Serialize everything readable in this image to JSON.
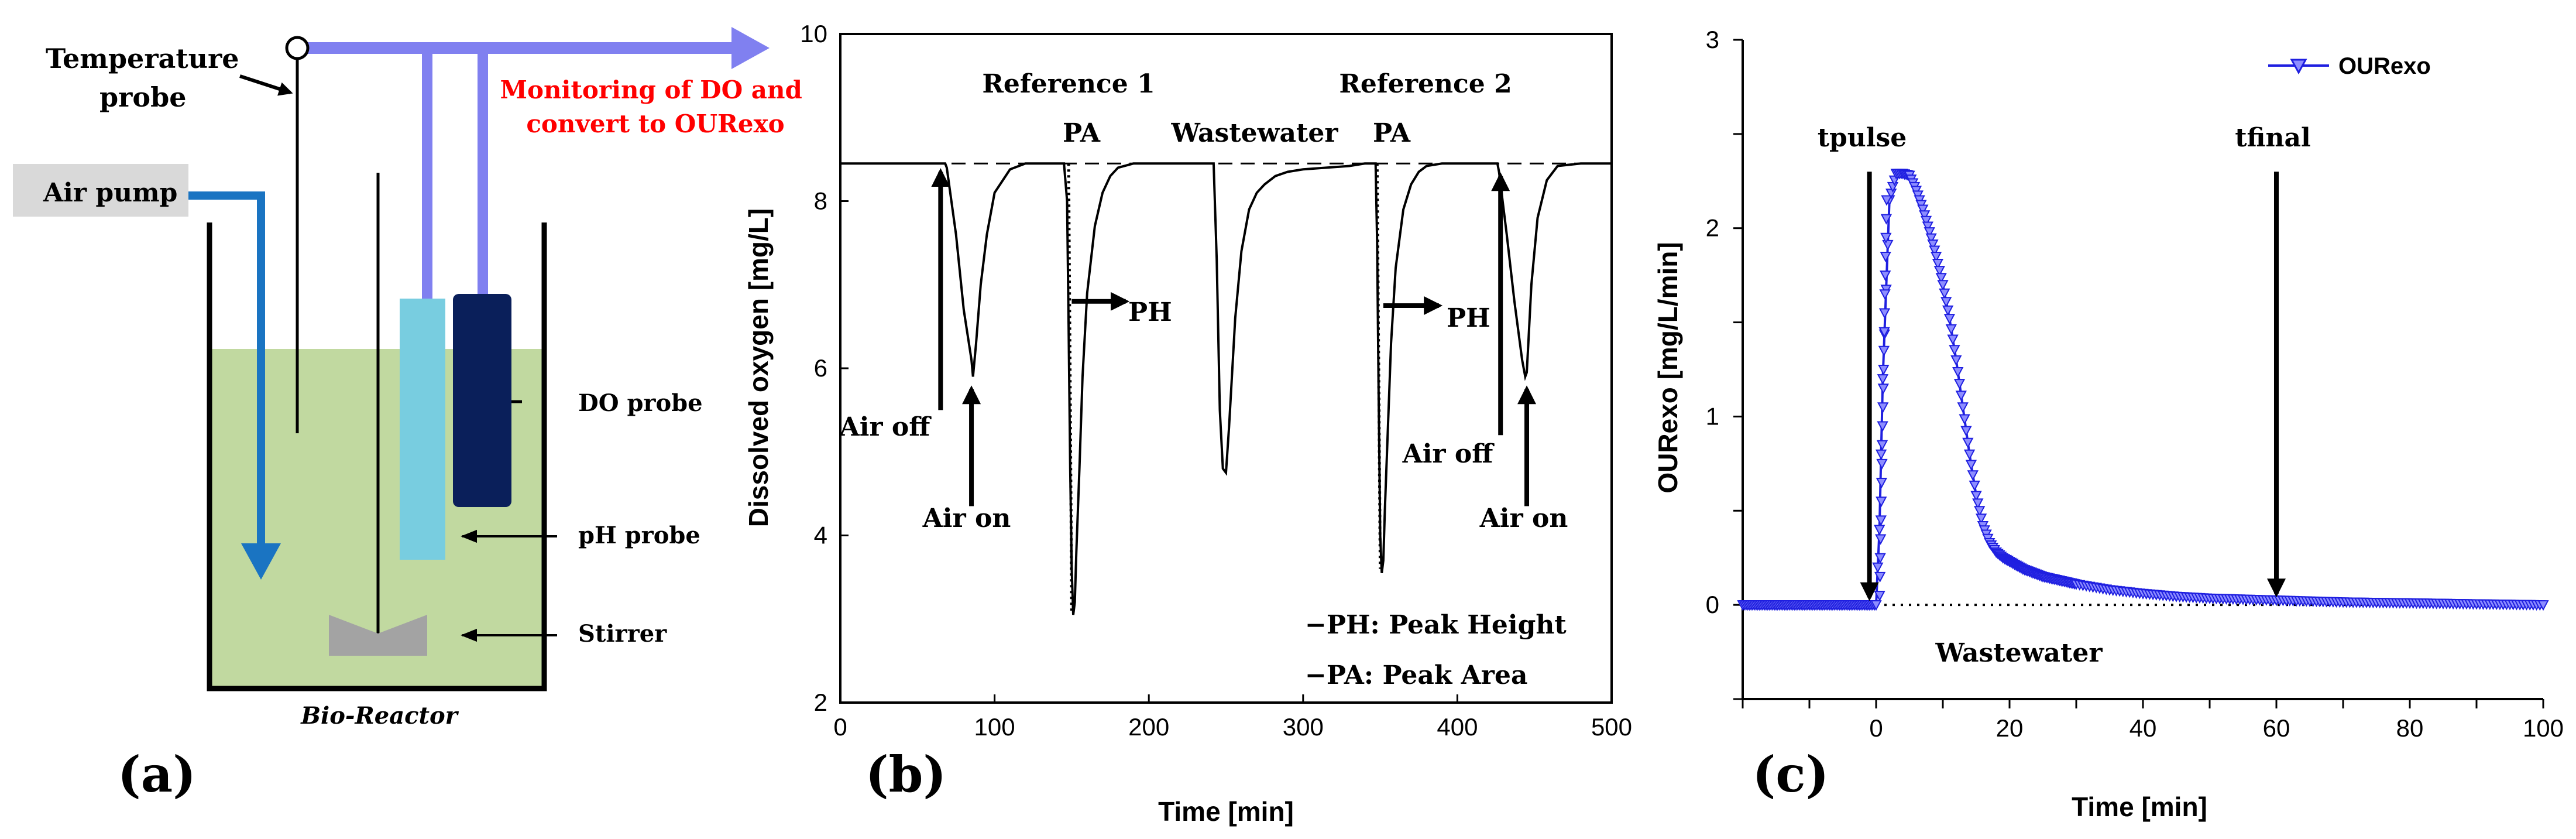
{
  "panel_a": {
    "label": "(a)",
    "temperature_probe": "Temperature\nprobe",
    "air_pump": "Air pump",
    "monitoring": "Monitoring of DO and\nconvert to OURexo",
    "do_probe": "DO probe",
    "ph_probe": "pH probe",
    "stirrer": "Stirrer",
    "reactor": "Bio-Reactor",
    "colors": {
      "liquid": "#c1d9a0",
      "blue_line": "#8080f0",
      "air_line": "#1a74c2",
      "ph_probe": "#78cde0",
      "do_probe": "#0a1f5a",
      "stirrer": "#a3a3a3",
      "monitor_text": "#ff0000",
      "air_box": "#d9d9d9"
    }
  },
  "panel_b": {
    "label": "(b)",
    "chart_data": {
      "type": "line",
      "xlabel": "Time [min]",
      "ylabel": "Dissolved oxygen [mg/L]",
      "xlim": [
        0,
        500
      ],
      "ylim": [
        2,
        10
      ],
      "xticks": [
        0,
        100,
        200,
        300,
        400,
        500
      ],
      "yticks": [
        2,
        4,
        6,
        8,
        10
      ],
      "baseline": 8.45,
      "series": [
        {
          "name": "DO",
          "x": [
            0,
            68,
            69,
            75,
            80,
            85,
            86,
            88,
            91,
            95,
            100,
            110,
            120,
            145,
            147,
            148,
            149,
            150,
            151,
            152,
            153,
            155,
            157,
            160,
            165,
            170,
            175,
            180,
            190,
            200,
            242,
            244,
            246,
            248,
            250,
            252,
            256,
            260,
            265,
            270,
            275,
            282,
            290,
            300,
            330,
            340,
            347,
            348,
            349,
            350,
            351,
            352,
            353,
            355,
            357,
            360,
            365,
            370,
            375,
            380,
            390,
            400,
            420,
            426,
            427,
            432,
            437,
            442,
            444,
            445,
            446,
            448,
            452,
            458,
            465,
            480,
            500
          ],
          "y": [
            8.45,
            8.45,
            8.4,
            7.6,
            6.7,
            6.1,
            5.9,
            6.3,
            7.0,
            7.6,
            8.1,
            8.38,
            8.45,
            8.45,
            8.0,
            6.5,
            4.8,
            3.6,
            3.05,
            3.2,
            3.8,
            4.8,
            5.9,
            6.9,
            7.7,
            8.1,
            8.3,
            8.4,
            8.45,
            8.45,
            8.45,
            7.3,
            5.5,
            4.8,
            4.75,
            5.3,
            6.6,
            7.4,
            7.9,
            8.1,
            8.2,
            8.3,
            8.35,
            8.38,
            8.42,
            8.45,
            8.45,
            7.5,
            5.6,
            4.0,
            3.55,
            3.7,
            4.3,
            5.3,
            6.3,
            7.2,
            7.9,
            8.2,
            8.35,
            8.42,
            8.45,
            8.45,
            8.45,
            8.45,
            8.35,
            7.6,
            6.8,
            6.1,
            5.9,
            5.95,
            6.3,
            7.0,
            7.8,
            8.25,
            8.42,
            8.45,
            8.45
          ]
        }
      ],
      "annotations": {
        "reference1": "Reference 1",
        "reference2": "Reference 2",
        "pa": "PA",
        "wastewater": "Wastewater",
        "ph": "PH",
        "air_off": "Air off",
        "air_on": "Air on",
        "legend_ph": "−PH: Peak Height",
        "legend_pa": "−PA: Peak Area"
      }
    }
  },
  "panel_c": {
    "label": "(c)",
    "chart_data": {
      "type": "line",
      "xlabel": "Time [min]",
      "ylabel": "OURexo [mg/L/min]",
      "xlim": [
        -20,
        100
      ],
      "ylim": [
        -0.5,
        3
      ],
      "xticks": [
        0,
        20,
        40,
        60,
        80,
        100
      ],
      "yticks": [
        0,
        1,
        2,
        3
      ],
      "series": [
        {
          "name": "OURexo",
          "x": [
            -20,
            0,
            0.5,
            1,
            2,
            3,
            4,
            5,
            6,
            7,
            8,
            9,
            10,
            11,
            12,
            13,
            14,
            15,
            16,
            17,
            18,
            19,
            20,
            22,
            25,
            30,
            35,
            40,
            45,
            50,
            55,
            60,
            70,
            80,
            90,
            100
          ],
          "y": [
            0,
            0,
            0.4,
            1.2,
            2.15,
            2.29,
            2.29,
            2.28,
            2.2,
            2.1,
            1.98,
            1.85,
            1.7,
            1.52,
            1.3,
            1.05,
            0.8,
            0.58,
            0.42,
            0.33,
            0.28,
            0.25,
            0.23,
            0.19,
            0.15,
            0.11,
            0.08,
            0.06,
            0.045,
            0.035,
            0.03,
            0.025,
            0.015,
            0.01,
            0.005,
            0.0
          ]
        }
      ],
      "annotations": {
        "tpulse": "tpulse",
        "tfinal": "tfinal",
        "wastewater": "Wastewater"
      },
      "legend": "OURexo",
      "color": "#1f1fe0"
    }
  }
}
